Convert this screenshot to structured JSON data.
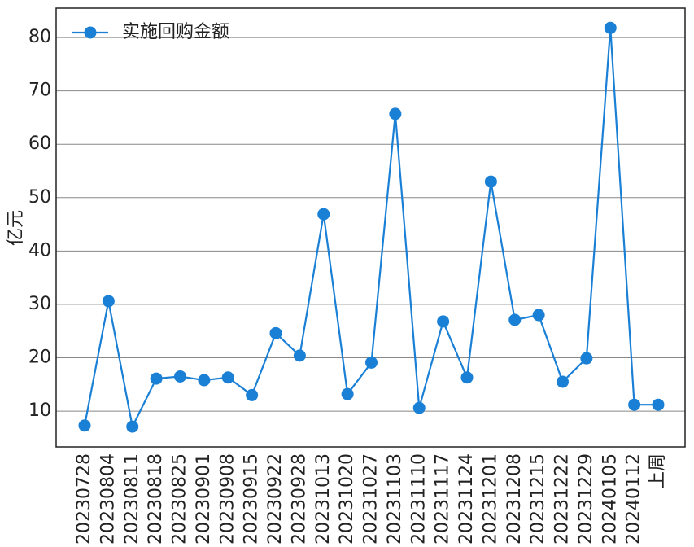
{
  "chart_data": {
    "type": "line",
    "categories": [
      "20230728",
      "20230804",
      "20230811",
      "20230818",
      "20230825",
      "20230901",
      "20230908",
      "20230915",
      "20230922",
      "20230928",
      "20231013",
      "20231020",
      "20231027",
      "20231103",
      "20231110",
      "20231117",
      "20231124",
      "20231201",
      "20231208",
      "20231215",
      "20231222",
      "20231229",
      "20240105",
      "20240112",
      "上周"
    ],
    "series": [
      {
        "name": "实施回购金额",
        "color": "#1a80d6",
        "values": [
          7.3,
          30.6,
          7.1,
          16.1,
          16.5,
          15.8,
          16.3,
          13.0,
          24.6,
          20.4,
          46.9,
          13.2,
          19.1,
          65.7,
          10.6,
          26.8,
          16.3,
          53.0,
          27.1,
          28.0,
          15.5,
          19.9,
          81.8,
          11.2,
          11.2
        ]
      }
    ],
    "y_label": "亿元",
    "ylim": [
      3.3,
      85.5
    ],
    "yticks": [
      10,
      20,
      30,
      40,
      50,
      60,
      70,
      80
    ],
    "grid": true,
    "legend": "upper-left"
  }
}
